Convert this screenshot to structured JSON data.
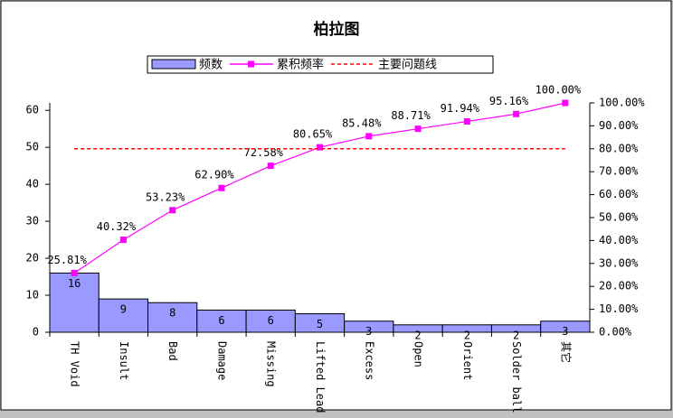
{
  "chart_data": {
    "type": "pareto",
    "title": "柏拉图",
    "categories": [
      "TH Void",
      "Insult",
      "Bad",
      "Damage",
      "Missing",
      "Lifted Lead",
      "Excess",
      "Open",
      "Orient",
      "Solder ball",
      "其它"
    ],
    "series": [
      {
        "name": "频数",
        "type": "bar",
        "color": "#9999ff",
        "values": [
          16,
          9,
          8,
          6,
          6,
          5,
          3,
          2,
          2,
          2,
          3
        ]
      },
      {
        "name": "累积频率",
        "type": "line",
        "axis": "y2",
        "color": "#ff00ff",
        "values": [
          25.81,
          40.32,
          53.23,
          62.9,
          72.58,
          80.65,
          85.48,
          88.71,
          91.94,
          95.16,
          100.0
        ],
        "value_labels": [
          "25.81%",
          "40.32%",
          "53.23%",
          "62.90%",
          "72.58%",
          "80.65%",
          "85.48%",
          "88.71%",
          "91.94%",
          "95.16%",
          "100.00%"
        ]
      },
      {
        "name": "主要问题线",
        "type": "line",
        "axis": "y2",
        "color": "#ff0000",
        "dashed": true,
        "values": [
          80,
          80,
          80,
          80,
          80,
          80,
          80,
          80,
          80,
          80,
          80
        ]
      }
    ],
    "ylim": [
      0,
      62
    ],
    "yticks": [
      0,
      10,
      20,
      30,
      40,
      50,
      60
    ],
    "y2lim": [
      0,
      100
    ],
    "y2ticks": [
      {
        "value": 0,
        "label": "0.00%"
      },
      {
        "value": 10,
        "label": "10.00%"
      },
      {
        "value": 20,
        "label": "20.00%"
      },
      {
        "value": 30,
        "label": "30.00%"
      },
      {
        "value": 40,
        "label": "40.00%"
      },
      {
        "value": 50,
        "label": "50.00%"
      },
      {
        "value": 60,
        "label": "60.00%"
      },
      {
        "value": 70,
        "label": "70.00%"
      },
      {
        "value": 80,
        "label": "80.00%"
      },
      {
        "value": 90,
        "label": "90.00%"
      },
      {
        "value": 100,
        "label": "100.00%"
      }
    ]
  }
}
